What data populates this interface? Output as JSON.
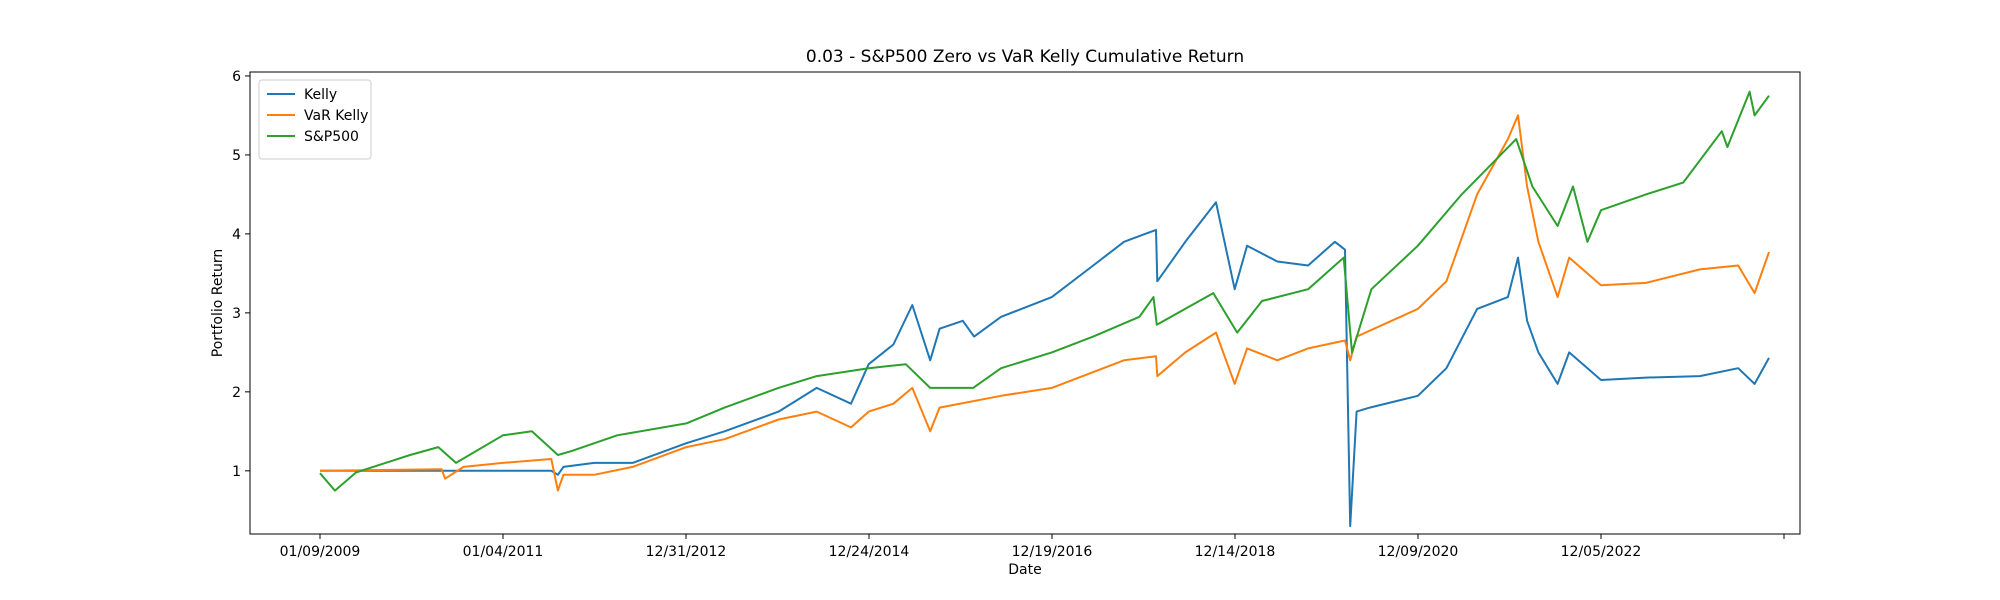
{
  "chart_data": {
    "type": "line",
    "title": "0.03 - S&P500 Zero vs VaR Kelly Cumulative Return",
    "xlabel": "Date",
    "ylabel": "Portfolio Return",
    "x_tick_labels": [
      "01/09/2009",
      "01/04/2011",
      "12/31/2012",
      "12/24/2014",
      "12/19/2016",
      "12/14/2018",
      "12/09/2020",
      "12/05/2022"
    ],
    "y_ticks": [
      1,
      2,
      3,
      4,
      5,
      6
    ],
    "ylim": [
      0.2,
      6.05
    ],
    "legend_position": "upper-left",
    "grid": false,
    "series": [
      {
        "name": "Kelly",
        "color": "#1f77b4",
        "points": [
          [
            "2009-01-09",
            1.0
          ],
          [
            "2011-07-15",
            1.0
          ],
          [
            "2011-08-10",
            0.95
          ],
          [
            "2011-09-01",
            1.05
          ],
          [
            "2012-01-01",
            1.1
          ],
          [
            "2012-06-01",
            1.1
          ],
          [
            "2012-12-31",
            1.35
          ],
          [
            "2013-06-01",
            1.5
          ],
          [
            "2014-01-01",
            1.75
          ],
          [
            "2014-06-01",
            2.05
          ],
          [
            "2014-10-15",
            1.85
          ],
          [
            "2014-12-24",
            2.35
          ],
          [
            "2015-04-01",
            2.6
          ],
          [
            "2015-06-15",
            3.1
          ],
          [
            "2015-08-25",
            2.4
          ],
          [
            "2015-10-01",
            2.8
          ],
          [
            "2016-01-01",
            2.9
          ],
          [
            "2016-02-15",
            2.7
          ],
          [
            "2016-06-01",
            2.95
          ],
          [
            "2016-12-19",
            3.2
          ],
          [
            "2017-06-01",
            3.6
          ],
          [
            "2017-10-01",
            3.9
          ],
          [
            "2018-02-05",
            4.05
          ],
          [
            "2018-02-10",
            3.4
          ],
          [
            "2018-06-01",
            3.9
          ],
          [
            "2018-10-01",
            4.4
          ],
          [
            "2018-12-14",
            3.3
          ],
          [
            "2019-02-01",
            3.85
          ],
          [
            "2019-06-01",
            3.65
          ],
          [
            "2019-10-01",
            3.6
          ],
          [
            "2020-01-15",
            3.9
          ],
          [
            "2020-02-24",
            3.8
          ],
          [
            "2020-03-16",
            0.3
          ],
          [
            "2020-04-10",
            1.75
          ],
          [
            "2020-06-01",
            1.8
          ],
          [
            "2020-12-09",
            1.95
          ],
          [
            "2021-04-01",
            2.3
          ],
          [
            "2021-08-01",
            3.05
          ],
          [
            "2021-12-01",
            3.2
          ],
          [
            "2022-01-10",
            3.7
          ],
          [
            "2022-02-15",
            2.9
          ],
          [
            "2022-04-01",
            2.5
          ],
          [
            "2022-06-16",
            2.1
          ],
          [
            "2022-08-01",
            2.5
          ],
          [
            "2022-12-05",
            2.15
          ],
          [
            "2023-06-01",
            2.18
          ],
          [
            "2024-01-01",
            2.2
          ],
          [
            "2024-06-01",
            2.3
          ],
          [
            "2024-08-05",
            2.1
          ],
          [
            "2024-10-01",
            2.43
          ]
        ]
      },
      {
        "name": "VaR Kelly",
        "color": "#ff7f0e",
        "points": [
          [
            "2009-01-09",
            1.0
          ],
          [
            "2010-05-06",
            1.02
          ],
          [
            "2010-05-20",
            0.9
          ],
          [
            "2010-08-01",
            1.05
          ],
          [
            "2011-01-04",
            1.1
          ],
          [
            "2011-07-15",
            1.15
          ],
          [
            "2011-08-10",
            0.75
          ],
          [
            "2011-09-01",
            0.95
          ],
          [
            "2012-01-01",
            0.95
          ],
          [
            "2012-06-01",
            1.05
          ],
          [
            "2012-12-31",
            1.3
          ],
          [
            "2013-06-01",
            1.4
          ],
          [
            "2014-01-01",
            1.65
          ],
          [
            "2014-06-01",
            1.75
          ],
          [
            "2014-10-15",
            1.55
          ],
          [
            "2014-12-24",
            1.75
          ],
          [
            "2015-04-01",
            1.85
          ],
          [
            "2015-06-15",
            2.05
          ],
          [
            "2015-08-25",
            1.5
          ],
          [
            "2015-10-01",
            1.8
          ],
          [
            "2016-06-01",
            1.95
          ],
          [
            "2016-12-19",
            2.05
          ],
          [
            "2017-06-01",
            2.25
          ],
          [
            "2017-10-01",
            2.4
          ],
          [
            "2018-02-05",
            2.45
          ],
          [
            "2018-02-10",
            2.2
          ],
          [
            "2018-06-01",
            2.5
          ],
          [
            "2018-10-01",
            2.75
          ],
          [
            "2018-12-14",
            2.1
          ],
          [
            "2019-02-01",
            2.55
          ],
          [
            "2019-06-01",
            2.4
          ],
          [
            "2019-10-01",
            2.55
          ],
          [
            "2020-02-24",
            2.65
          ],
          [
            "2020-03-16",
            2.4
          ],
          [
            "2020-04-10",
            2.7
          ],
          [
            "2020-12-09",
            3.05
          ],
          [
            "2021-04-01",
            3.4
          ],
          [
            "2021-08-01",
            4.5
          ],
          [
            "2021-12-01",
            5.2
          ],
          [
            "2022-01-10",
            5.5
          ],
          [
            "2022-02-15",
            4.6
          ],
          [
            "2022-04-01",
            3.9
          ],
          [
            "2022-06-16",
            3.2
          ],
          [
            "2022-08-01",
            3.7
          ],
          [
            "2022-12-05",
            3.35
          ],
          [
            "2023-06-01",
            3.38
          ],
          [
            "2024-01-01",
            3.55
          ],
          [
            "2024-06-01",
            3.6
          ],
          [
            "2024-08-05",
            3.25
          ],
          [
            "2024-10-01",
            3.77
          ]
        ]
      },
      {
        "name": "S&P500",
        "color": "#2ca02c",
        "points": [
          [
            "2009-01-09",
            0.97
          ],
          [
            "2009-03-09",
            0.75
          ],
          [
            "2009-06-01",
            0.98
          ],
          [
            "2010-01-01",
            1.2
          ],
          [
            "2010-04-23",
            1.3
          ],
          [
            "2010-07-02",
            1.1
          ],
          [
            "2011-01-04",
            1.45
          ],
          [
            "2011-04-29",
            1.5
          ],
          [
            "2011-08-10",
            1.2
          ],
          [
            "2011-10-03",
            1.25
          ],
          [
            "2012-04-01",
            1.45
          ],
          [
            "2012-12-31",
            1.6
          ],
          [
            "2013-06-01",
            1.8
          ],
          [
            "2013-12-31",
            2.05
          ],
          [
            "2014-06-01",
            2.2
          ],
          [
            "2014-12-24",
            2.3
          ],
          [
            "2015-05-20",
            2.35
          ],
          [
            "2015-08-25",
            2.05
          ],
          [
            "2016-02-11",
            2.05
          ],
          [
            "2016-06-01",
            2.3
          ],
          [
            "2016-12-19",
            2.5
          ],
          [
            "2017-06-01",
            2.7
          ],
          [
            "2017-12-01",
            2.95
          ],
          [
            "2018-01-26",
            3.2
          ],
          [
            "2018-02-08",
            2.85
          ],
          [
            "2018-09-20",
            3.25
          ],
          [
            "2018-12-24",
            2.75
          ],
          [
            "2019-04-01",
            3.15
          ],
          [
            "2019-10-01",
            3.3
          ],
          [
            "2020-02-19",
            3.7
          ],
          [
            "2020-03-23",
            2.5
          ],
          [
            "2020-06-08",
            3.3
          ],
          [
            "2020-12-09",
            3.85
          ],
          [
            "2021-06-01",
            4.5
          ],
          [
            "2022-01-03",
            5.2
          ],
          [
            "2022-03-08",
            4.6
          ],
          [
            "2022-06-16",
            4.1
          ],
          [
            "2022-08-16",
            4.6
          ],
          [
            "2022-10-12",
            3.9
          ],
          [
            "2022-12-05",
            4.3
          ],
          [
            "2023-06-01",
            4.5
          ],
          [
            "2023-10-27",
            4.65
          ],
          [
            "2024-03-28",
            5.3
          ],
          [
            "2024-04-19",
            5.1
          ],
          [
            "2024-07-16",
            5.8
          ],
          [
            "2024-08-05",
            5.5
          ],
          [
            "2024-10-01",
            5.75
          ]
        ]
      }
    ]
  }
}
